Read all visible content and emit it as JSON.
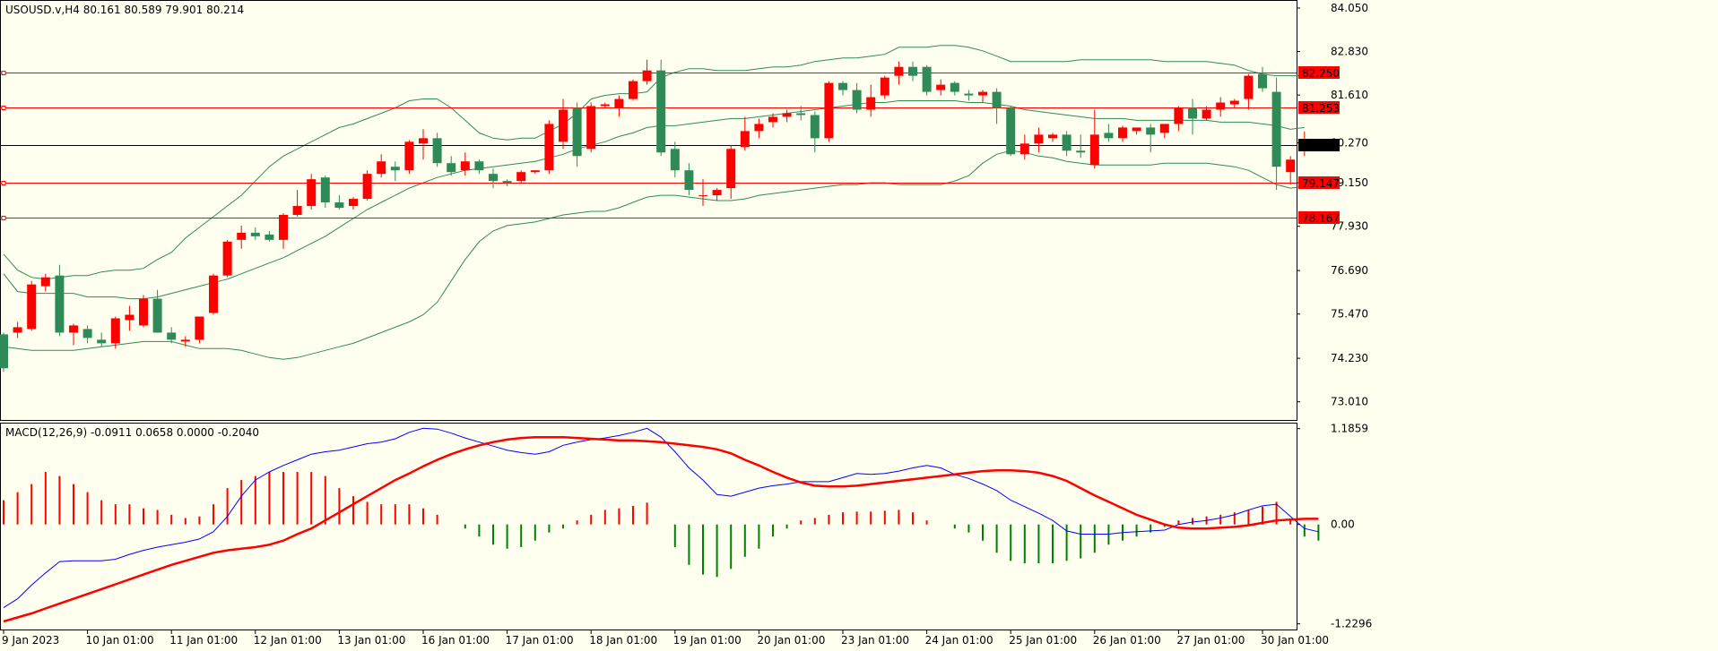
{
  "chart_data": [
    {
      "type": "candlestick",
      "header": {
        "symbol_tf": "USOUSD.v,H4",
        "ohlc": "80.161 80.589 79.901 80.214"
      },
      "price_axis": {
        "ylim": [
          72.5,
          84.25
        ],
        "ticks": [
          "84.050",
          "82.830",
          "81.610",
          "80.270",
          "79.150",
          "77.930",
          "76.690",
          "75.470",
          "74.230",
          "73.010"
        ],
        "tick_values": [
          84.05,
          82.83,
          81.61,
          80.27,
          79.15,
          77.93,
          76.69,
          75.47,
          74.23,
          73.01
        ]
      },
      "current_price": {
        "label": "80.214",
        "value": 80.214,
        "color": "#000000"
      },
      "levels": [
        {
          "label": "82.250",
          "value": 82.25
        },
        {
          "label": "81.253",
          "value": 81.253
        },
        {
          "label": "79.147",
          "value": 79.147
        },
        {
          "label": "78.167",
          "value": 78.167
        }
      ],
      "level_color": "#ff0000",
      "colors": {
        "bull": "#ff0000",
        "bear": "#2e8b57",
        "bands": "#2e8b57",
        "background": "#fffff0"
      },
      "candles": [
        [
          74.9,
          74.95,
          73.85,
          73.95
        ],
        [
          74.95,
          75.25,
          74.8,
          75.1
        ],
        [
          75.05,
          76.4,
          75.0,
          76.3
        ],
        [
          76.25,
          76.6,
          76.1,
          76.5
        ],
        [
          76.55,
          76.85,
          74.85,
          74.95
        ],
        [
          74.95,
          75.2,
          74.6,
          75.15
        ],
        [
          75.05,
          75.15,
          74.65,
          74.8
        ],
        [
          74.75,
          74.95,
          74.55,
          74.65
        ],
        [
          74.65,
          75.4,
          74.5,
          75.35
        ],
        [
          75.3,
          75.7,
          75.0,
          75.45
        ],
        [
          75.15,
          76.0,
          75.1,
          75.9
        ],
        [
          75.9,
          76.15,
          74.95,
          74.95
        ],
        [
          74.95,
          75.1,
          74.65,
          74.75
        ],
        [
          74.7,
          74.85,
          74.55,
          74.75
        ],
        [
          74.75,
          75.4,
          74.65,
          75.4
        ],
        [
          75.5,
          76.6,
          75.45,
          76.55
        ],
        [
          76.55,
          77.55,
          76.5,
          77.5
        ],
        [
          77.55,
          77.95,
          77.3,
          77.75
        ],
        [
          77.75,
          77.9,
          77.55,
          77.65
        ],
        [
          77.7,
          77.8,
          77.5,
          77.55
        ],
        [
          77.55,
          78.3,
          77.3,
          78.25
        ],
        [
          78.25,
          78.95,
          78.2,
          78.5
        ],
        [
          78.5,
          79.4,
          78.4,
          79.25
        ],
        [
          79.3,
          79.35,
          78.45,
          78.6
        ],
        [
          78.6,
          78.8,
          78.4,
          78.45
        ],
        [
          78.5,
          78.75,
          78.4,
          78.7
        ],
        [
          78.7,
          79.5,
          78.65,
          79.4
        ],
        [
          79.4,
          79.95,
          79.3,
          79.75
        ],
        [
          79.6,
          79.75,
          79.2,
          79.5
        ],
        [
          79.5,
          80.35,
          79.4,
          80.3
        ],
        [
          80.25,
          80.65,
          79.8,
          80.4
        ],
        [
          80.4,
          80.55,
          79.6,
          79.7
        ],
        [
          79.7,
          79.9,
          79.35,
          79.45
        ],
        [
          79.5,
          80.0,
          79.35,
          79.75
        ],
        [
          79.75,
          79.8,
          79.4,
          79.5
        ],
        [
          79.4,
          79.55,
          79.0,
          79.2
        ],
        [
          79.2,
          79.25,
          79.05,
          79.15
        ],
        [
          79.2,
          79.5,
          79.15,
          79.45
        ],
        [
          79.45,
          79.5,
          79.4,
          79.5
        ],
        [
          79.5,
          80.9,
          79.4,
          80.8
        ],
        [
          80.3,
          81.5,
          80.1,
          81.2
        ],
        [
          81.25,
          81.4,
          79.6,
          79.9
        ],
        [
          80.1,
          81.4,
          80.0,
          81.3
        ],
        [
          81.3,
          81.4,
          81.25,
          81.35
        ],
        [
          81.25,
          81.6,
          81.0,
          81.5
        ],
        [
          81.5,
          82.05,
          81.45,
          82.0
        ],
        [
          82.0,
          82.6,
          81.9,
          82.3
        ],
        [
          82.3,
          82.6,
          79.9,
          80.0
        ],
        [
          80.1,
          80.3,
          79.3,
          79.5
        ],
        [
          79.5,
          79.7,
          78.8,
          78.95
        ],
        [
          78.8,
          79.25,
          78.5,
          78.8
        ],
        [
          78.8,
          79.0,
          78.65,
          78.95
        ],
        [
          79.0,
          80.2,
          78.7,
          80.1
        ],
        [
          80.15,
          81.0,
          80.05,
          80.6
        ],
        [
          80.6,
          80.95,
          80.4,
          80.8
        ],
        [
          80.85,
          81.1,
          80.7,
          81.0
        ],
        [
          81.0,
          81.2,
          80.85,
          81.1
        ],
        [
          81.1,
          81.3,
          80.9,
          81.05
        ],
        [
          81.05,
          81.15,
          80.0,
          80.4
        ],
        [
          80.4,
          82.0,
          80.3,
          81.95
        ],
        [
          81.95,
          82.0,
          81.6,
          81.75
        ],
        [
          81.75,
          81.95,
          81.1,
          81.2
        ],
        [
          81.2,
          81.9,
          81.0,
          81.55
        ],
        [
          81.6,
          82.15,
          81.5,
          82.1
        ],
        [
          82.15,
          82.55,
          81.9,
          82.4
        ],
        [
          82.4,
          82.55,
          82.0,
          82.15
        ],
        [
          82.4,
          82.45,
          81.6,
          81.7
        ],
        [
          81.75,
          82.05,
          81.6,
          81.9
        ],
        [
          81.95,
          82.0,
          81.6,
          81.7
        ],
        [
          81.65,
          81.75,
          81.45,
          81.6
        ],
        [
          81.6,
          81.75,
          81.4,
          81.7
        ],
        [
          81.7,
          81.8,
          80.8,
          81.25
        ],
        [
          81.25,
          81.3,
          79.9,
          79.95
        ],
        [
          79.95,
          80.5,
          79.8,
          80.25
        ],
        [
          80.25,
          80.7,
          80.0,
          80.5
        ],
        [
          80.4,
          80.55,
          80.3,
          80.5
        ],
        [
          80.5,
          80.6,
          79.9,
          80.05
        ],
        [
          80.05,
          80.5,
          79.85,
          80.0
        ],
        [
          79.65,
          81.2,
          79.55,
          80.5
        ],
        [
          80.55,
          80.8,
          80.3,
          80.4
        ],
        [
          80.4,
          80.75,
          80.3,
          80.7
        ],
        [
          80.6,
          80.7,
          80.5,
          80.7
        ],
        [
          80.7,
          80.8,
          80.0,
          80.5
        ],
        [
          80.55,
          80.8,
          80.4,
          80.8
        ],
        [
          80.8,
          81.3,
          80.6,
          81.25
        ],
        [
          81.25,
          81.5,
          80.5,
          80.95
        ],
        [
          80.95,
          81.3,
          80.9,
          81.2
        ],
        [
          81.2,
          81.55,
          81.0,
          81.4
        ],
        [
          81.35,
          81.5,
          81.25,
          81.45
        ],
        [
          81.5,
          82.2,
          81.2,
          82.15
        ],
        [
          82.2,
          82.4,
          81.7,
          81.8
        ],
        [
          81.7,
          82.1,
          78.95,
          79.6
        ],
        [
          79.45,
          79.9,
          79.1,
          79.8
        ],
        [
          80.16,
          80.59,
          79.9,
          80.21
        ]
      ],
      "bands": {
        "upper": [
          77.15,
          76.7,
          76.5,
          76.45,
          76.5,
          76.55,
          76.55,
          76.65,
          76.7,
          76.7,
          76.75,
          77.0,
          77.2,
          77.6,
          77.9,
          78.2,
          78.5,
          78.8,
          79.2,
          79.6,
          79.9,
          80.1,
          80.3,
          80.5,
          80.7,
          80.8,
          80.95,
          81.1,
          81.25,
          81.45,
          81.5,
          81.5,
          81.25,
          80.9,
          80.55,
          80.4,
          80.35,
          80.4,
          80.4,
          80.6,
          80.8,
          81.1,
          81.5,
          81.6,
          81.65,
          81.65,
          81.7,
          82.1,
          82.25,
          82.35,
          82.35,
          82.3,
          82.3,
          82.3,
          82.35,
          82.4,
          82.4,
          82.45,
          82.55,
          82.6,
          82.65,
          82.65,
          82.7,
          82.75,
          82.95,
          82.95,
          82.95,
          83.0,
          83.0,
          82.95,
          82.85,
          82.7,
          82.55,
          82.55,
          82.55,
          82.55,
          82.55,
          82.6,
          82.6,
          82.6,
          82.6,
          82.6,
          82.6,
          82.55,
          82.55,
          82.55,
          82.55,
          82.5,
          82.45,
          82.3,
          82.2,
          82.15,
          82.15,
          82.15
        ],
        "middle": [
          76.6,
          76.1,
          76.05,
          76.05,
          76.05,
          76.05,
          75.95,
          75.95,
          75.95,
          75.9,
          75.9,
          75.95,
          76.05,
          76.15,
          76.25,
          76.35,
          76.45,
          76.6,
          76.75,
          76.9,
          77.05,
          77.25,
          77.45,
          77.65,
          77.9,
          78.15,
          78.4,
          78.6,
          78.8,
          79.0,
          79.15,
          79.3,
          79.4,
          79.5,
          79.55,
          79.6,
          79.65,
          79.7,
          79.75,
          79.85,
          79.95,
          80.1,
          80.2,
          80.3,
          80.45,
          80.55,
          80.7,
          80.75,
          80.75,
          80.8,
          80.85,
          80.9,
          80.95,
          80.95,
          81.0,
          81.05,
          81.1,
          81.15,
          81.2,
          81.25,
          81.3,
          81.35,
          81.4,
          81.4,
          81.45,
          81.45,
          81.45,
          81.45,
          81.45,
          81.4,
          81.4,
          81.35,
          81.3,
          81.2,
          81.15,
          81.1,
          81.05,
          81.0,
          80.95,
          80.95,
          80.95,
          80.9,
          80.9,
          80.9,
          80.9,
          80.9,
          80.9,
          80.85,
          80.85,
          80.85,
          80.8,
          80.75,
          80.65,
          80.7
        ],
        "lower": [
          74.55,
          74.5,
          74.45,
          74.45,
          74.45,
          74.45,
          74.5,
          74.55,
          74.6,
          74.65,
          74.7,
          74.7,
          74.7,
          74.6,
          74.5,
          74.5,
          74.5,
          74.45,
          74.35,
          74.25,
          74.2,
          74.25,
          74.35,
          74.45,
          74.55,
          74.65,
          74.8,
          74.95,
          75.1,
          75.25,
          75.45,
          75.8,
          76.4,
          77.0,
          77.5,
          77.8,
          77.95,
          78.0,
          78.05,
          78.15,
          78.25,
          78.3,
          78.35,
          78.35,
          78.45,
          78.6,
          78.75,
          78.8,
          78.8,
          78.75,
          78.7,
          78.65,
          78.65,
          78.7,
          78.8,
          78.85,
          78.9,
          78.95,
          79.0,
          79.05,
          79.1,
          79.1,
          79.15,
          79.15,
          79.1,
          79.1,
          79.1,
          79.1,
          79.2,
          79.35,
          79.7,
          79.95,
          80.05,
          80.0,
          79.9,
          79.85,
          79.75,
          79.7,
          79.65,
          79.65,
          79.65,
          79.65,
          79.65,
          79.7,
          79.7,
          79.7,
          79.7,
          79.65,
          79.6,
          79.5,
          79.3,
          79.1,
          79.0,
          79.05
        ]
      }
    },
    {
      "type": "macd",
      "header": "MACD(12,26,9) -0.0911 0.0658 0.0000 -0.2040",
      "axis": {
        "ylim": [
          -1.3,
          1.26
        ],
        "ticks": [
          "1.1859",
          "0.00",
          "-1.2296"
        ],
        "tick_values": [
          1.1859,
          0.0,
          -1.2296
        ]
      },
      "colors": {
        "pos": "#ff0000",
        "neg": "#008000",
        "main_line": "#0000ff",
        "signal_line": "#ff0000"
      },
      "histogram": [
        0.3,
        0.4,
        0.5,
        0.65,
        0.6,
        0.5,
        0.4,
        0.3,
        0.25,
        0.25,
        0.2,
        0.18,
        0.12,
        0.08,
        0.1,
        0.25,
        0.45,
        0.55,
        0.6,
        0.65,
        0.65,
        0.65,
        0.65,
        0.6,
        0.45,
        0.35,
        0.28,
        0.25,
        0.25,
        0.25,
        0.2,
        0.12,
        0.0,
        -0.05,
        -0.15,
        -0.25,
        -0.3,
        -0.28,
        -0.2,
        -0.1,
        -0.05,
        0.05,
        0.12,
        0.18,
        0.2,
        0.23,
        0.27,
        0.0,
        -0.28,
        -0.5,
        -0.62,
        -0.65,
        -0.55,
        -0.4,
        -0.3,
        -0.15,
        -0.05,
        0.05,
        0.08,
        0.12,
        0.15,
        0.16,
        0.16,
        0.17,
        0.18,
        0.15,
        0.05,
        0.0,
        -0.05,
        -0.1,
        -0.2,
        -0.35,
        -0.45,
        -0.48,
        -0.48,
        -0.48,
        -0.45,
        -0.42,
        -0.35,
        -0.25,
        -0.2,
        -0.15,
        -0.1,
        -0.03,
        0.05,
        0.08,
        0.1,
        0.12,
        0.15,
        0.18,
        0.22,
        0.28,
        0.05,
        -0.15,
        -0.2
      ],
      "main_line": [
        -1.03,
        -0.92,
        -0.75,
        -0.6,
        -0.46,
        -0.45,
        -0.45,
        -0.45,
        -0.43,
        -0.37,
        -0.32,
        -0.28,
        -0.25,
        -0.22,
        -0.18,
        -0.09,
        0.1,
        0.35,
        0.55,
        0.65,
        0.73,
        0.8,
        0.87,
        0.9,
        0.92,
        0.96,
        1.0,
        1.02,
        1.06,
        1.14,
        1.19,
        1.18,
        1.13,
        1.07,
        1.02,
        0.97,
        0.92,
        0.89,
        0.87,
        0.9,
        0.98,
        1.02,
        1.05,
        1.07,
        1.1,
        1.14,
        1.19,
        1.08,
        0.9,
        0.7,
        0.55,
        0.37,
        0.35,
        0.4,
        0.45,
        0.48,
        0.5,
        0.53,
        0.53,
        0.53,
        0.58,
        0.63,
        0.62,
        0.63,
        0.66,
        0.7,
        0.73,
        0.7,
        0.62,
        0.57,
        0.5,
        0.42,
        0.3,
        0.22,
        0.14,
        0.05,
        -0.08,
        -0.12,
        -0.12,
        -0.12,
        -0.1,
        -0.09,
        -0.08,
        -0.07,
        0.0,
        0.03,
        0.05,
        0.08,
        0.12,
        0.18,
        0.23,
        0.25,
        0.1,
        -0.05,
        -0.09
      ],
      "signal_line": [
        -1.2,
        -1.15,
        -1.1,
        -1.04,
        -0.98,
        -0.92,
        -0.86,
        -0.8,
        -0.74,
        -0.68,
        -0.62,
        -0.56,
        -0.5,
        -0.45,
        -0.4,
        -0.35,
        -0.32,
        -0.3,
        -0.28,
        -0.25,
        -0.2,
        -0.12,
        -0.05,
        0.05,
        0.15,
        0.25,
        0.35,
        0.45,
        0.55,
        0.63,
        0.72,
        0.8,
        0.87,
        0.93,
        0.98,
        1.02,
        1.05,
        1.07,
        1.08,
        1.08,
        1.08,
        1.07,
        1.06,
        1.05,
        1.04,
        1.04,
        1.03,
        1.02,
        1.0,
        0.98,
        0.96,
        0.93,
        0.88,
        0.8,
        0.73,
        0.65,
        0.58,
        0.52,
        0.48,
        0.47,
        0.47,
        0.48,
        0.5,
        0.52,
        0.54,
        0.56,
        0.58,
        0.6,
        0.62,
        0.64,
        0.66,
        0.67,
        0.67,
        0.66,
        0.64,
        0.6,
        0.54,
        0.45,
        0.36,
        0.28,
        0.2,
        0.12,
        0.06,
        0.0,
        -0.04,
        -0.05,
        -0.05,
        -0.04,
        -0.03,
        -0.01,
        0.02,
        0.05,
        0.06,
        0.07,
        0.07
      ]
    }
  ],
  "time_axis": {
    "labels": [
      "9 Jan 2023",
      "10 Jan 01:00",
      "11 Jan 01:00",
      "12 Jan 01:00",
      "13 Jan 01:00",
      "16 Jan 01:00",
      "17 Jan 01:00",
      "18 Jan 01:00",
      "19 Jan 01:00",
      "20 Jan 01:00",
      "23 Jan 01:00",
      "24 Jan 01:00",
      "25 Jan 01:00",
      "26 Jan 01:00",
      "27 Jan 01:00",
      "30 Jan 01:00"
    ]
  }
}
